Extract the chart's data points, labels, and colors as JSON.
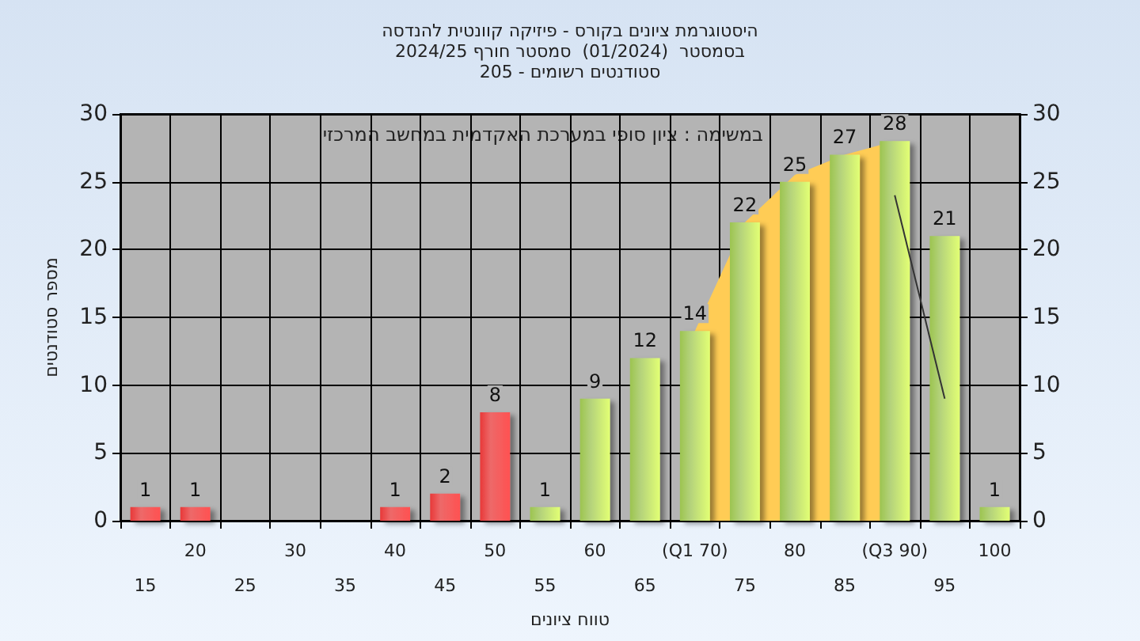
{
  "chart_data": {
    "type": "bar",
    "title": "היסטוגרמת ציונים בקורס - פיזיקה קוונטית להנדסה\nבסמסטר  (01/2024)  סמסטר חורף 2024/25\nסטודנטים רשומים - 205",
    "xlabel": "טווח ציונים",
    "ylabel": "מספר סטודנטים",
    "annotations": [
      "במשימה : ציון סופי במערכת האקדמית במחשב המרכזי"
    ],
    "categories": [
      "15",
      "20",
      "25",
      "30",
      "35",
      "40",
      "45",
      "50",
      "55",
      "60",
      "65",
      "(Q1 70)",
      "75",
      "80",
      "85",
      "(Q3 90)",
      "95",
      "100"
    ],
    "series": [
      {
        "type": "area",
        "color": "#ffcc55",
        "x": [
          "(Q1 70)",
          "75",
          "80",
          "85",
          "(Q3 90)"
        ],
        "values": [
          14,
          22,
          25.5,
          27,
          28
        ]
      },
      {
        "type": "line",
        "color": "#333333",
        "x": [
          "(Q3 90)",
          "95"
        ],
        "values": [
          24,
          9
        ]
      },
      {
        "values": [
          1,
          1,
          0,
          0,
          0,
          1,
          2,
          8,
          1,
          9,
          12,
          14,
          22,
          25,
          27,
          28,
          21,
          1
        ],
        "colors": [
          "#e83838",
          "#e83838",
          "#e83838",
          "#e83838",
          "#e83838",
          "#e83838",
          "#e83838",
          "#e83838",
          "#9cc450",
          "#9cc450",
          "#9cc450",
          "#9cc450",
          "#9cc450",
          "#9cc450",
          "#9cc450",
          "#9cc450",
          "#9cc450",
          "#9cc450"
        ],
        "value_labels": [
          "1",
          "1",
          null,
          null,
          null,
          "1",
          "2",
          "8",
          "1",
          "9",
          "12",
          "14",
          "22",
          "25",
          "27",
          "28",
          "21",
          "1"
        ]
      }
    ],
    "ylim": [
      0,
      30
    ],
    "yticks": [
      0,
      5,
      10,
      15,
      20,
      25,
      30
    ],
    "y2lim": [
      0,
      30
    ],
    "y2ticks": [
      0,
      5,
      10,
      15,
      20,
      25,
      30
    ],
    "grid": true
  }
}
